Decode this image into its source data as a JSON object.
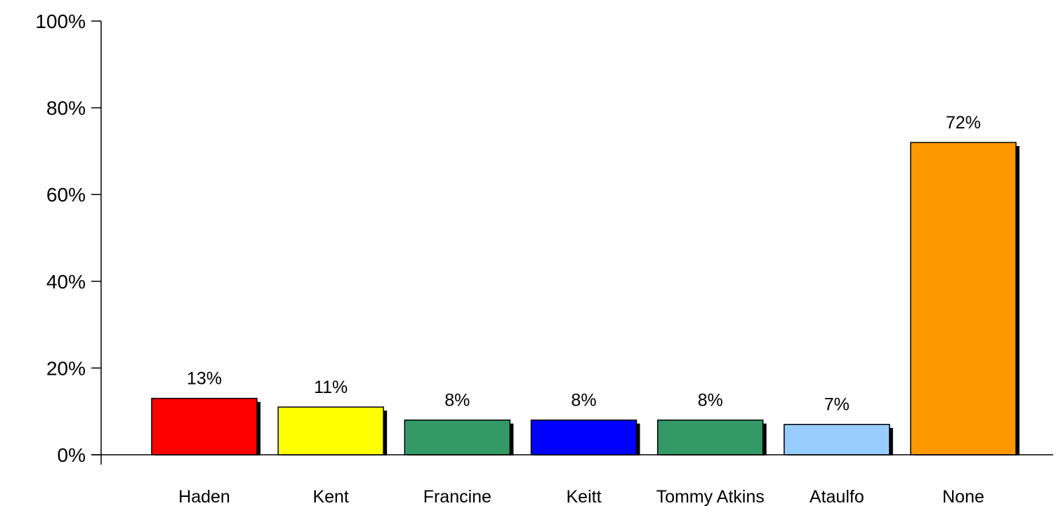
{
  "chart_data": {
    "type": "bar",
    "categories": [
      "Haden",
      "Kent",
      "Francine",
      "Keitt",
      "Tommy Atkins",
      "Ataulfo",
      "None"
    ],
    "values": [
      13,
      11,
      8,
      8,
      8,
      7,
      72
    ],
    "data_labels": [
      "13%",
      "11%",
      "8%",
      "8%",
      "8%",
      "7%",
      "72%"
    ],
    "bar_colors": [
      "#ff0000",
      "#ffff00",
      "#339966",
      "#0000ff",
      "#339966",
      "#99ccff",
      "#ff9900"
    ],
    "yticks": [
      "0%",
      "20%",
      "40%",
      "60%",
      "80%",
      "100%"
    ],
    "ylim": [
      0,
      100
    ],
    "grid": false,
    "legend": "none",
    "bar_shadow": true
  }
}
